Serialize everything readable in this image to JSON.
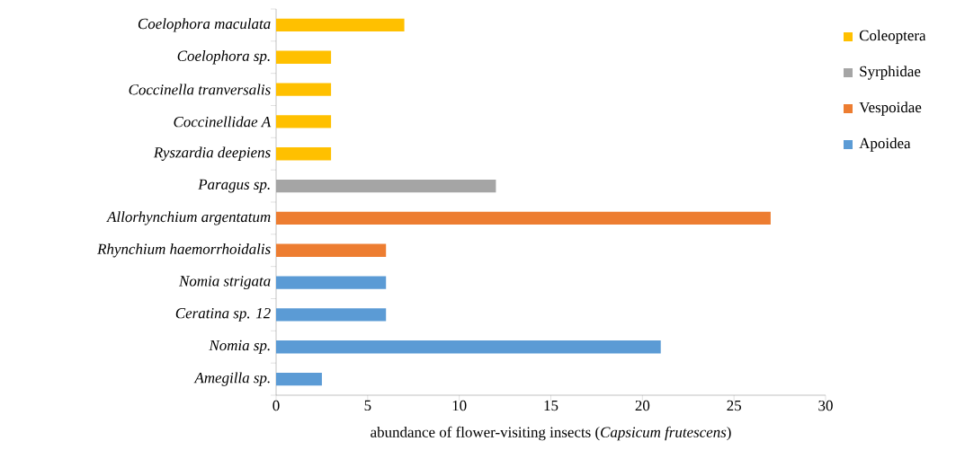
{
  "chart_data": {
    "type": "bar",
    "orientation": "horizontal",
    "stacked": true,
    "xlabel": "abundance of flower-visiting insects (*Capsicum frutescens*)",
    "categories": [
      "Coelophora maculata",
      "Coelophora sp.",
      "Coccinella tranversalis",
      "Coccinellidae A",
      "Ryszardia deepiens",
      "Paragus sp.",
      "Allorhynchium argentatum",
      "Rhynchium haemorrhoidalis",
      "Nomia strigata",
      "Ceratina sp. 12",
      "Nomia sp.",
      "Amegilla sp."
    ],
    "series": [
      {
        "name": "Coleoptera",
        "color": "#ffc000",
        "values": [
          7,
          3,
          3,
          3,
          3,
          null,
          null,
          null,
          null,
          null,
          null,
          null
        ]
      },
      {
        "name": "Syrphidae",
        "color": "#a5a5a5",
        "values": [
          null,
          null,
          null,
          null,
          null,
          12,
          null,
          null,
          null,
          null,
          null,
          null
        ]
      },
      {
        "name": "Vespoidae",
        "color": "#ed7d31",
        "values": [
          null,
          null,
          null,
          null,
          null,
          null,
          27,
          6,
          null,
          null,
          null,
          null
        ]
      },
      {
        "name": "Apoidea",
        "color": "#5b9bd5",
        "values": [
          null,
          null,
          null,
          null,
          null,
          null,
          null,
          null,
          6,
          6,
          21,
          2.5
        ]
      }
    ],
    "xlim": [
      0,
      30
    ],
    "xticks": [
      0,
      5,
      10,
      15,
      20,
      25,
      30
    ],
    "legend": "right"
  }
}
